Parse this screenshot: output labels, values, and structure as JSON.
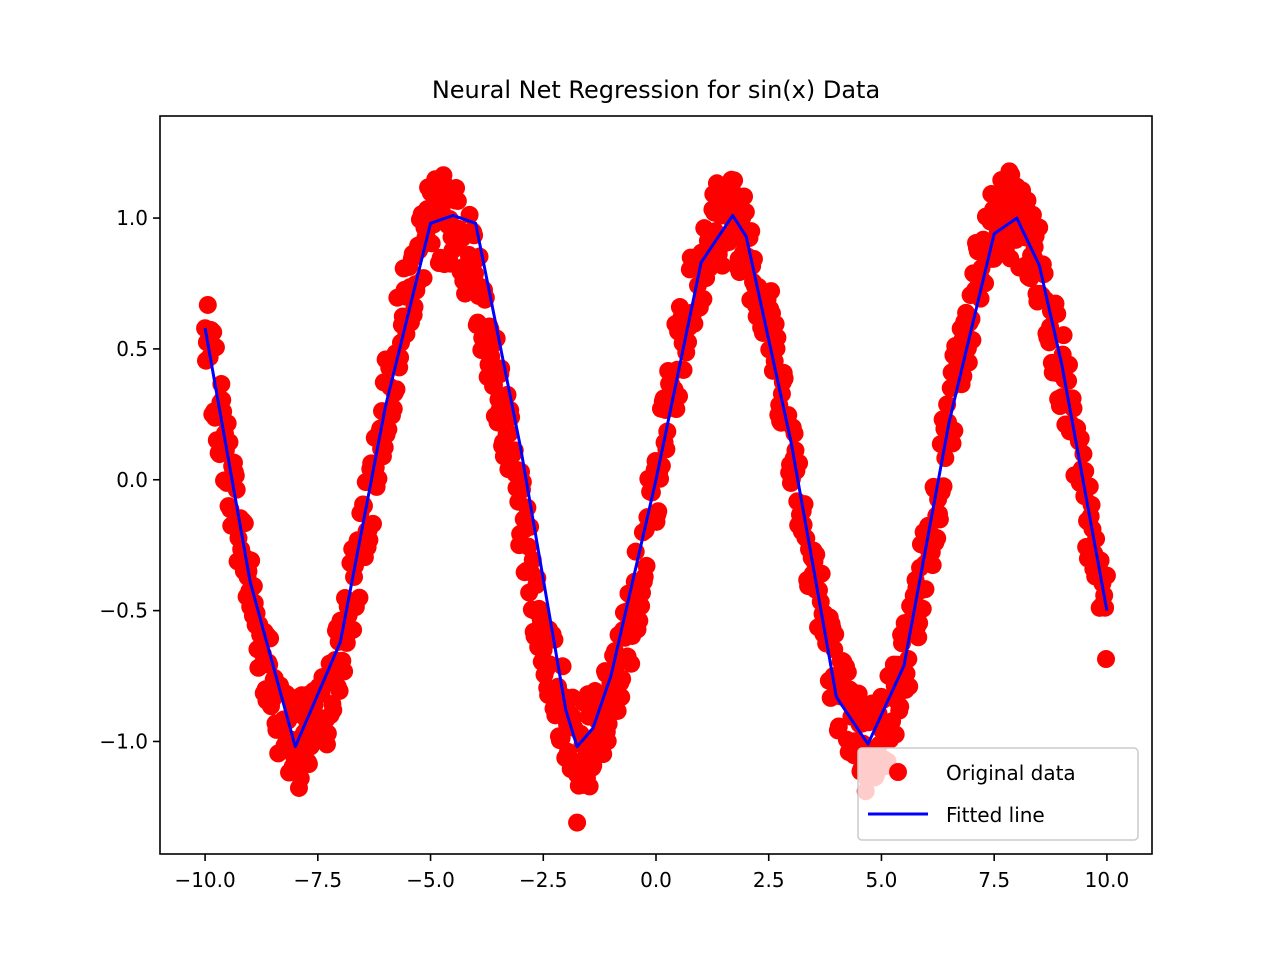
{
  "chart_data": {
    "type": "scatter",
    "title": "Neural Net Regression for sin(x) Data",
    "xlabel": "",
    "ylabel": "",
    "xlim": [
      -11.0,
      11.0
    ],
    "ylim": [
      -1.43,
      1.39
    ],
    "x_ticks": [
      -10.0,
      -7.5,
      -5.0,
      -2.5,
      0.0,
      2.5,
      5.0,
      7.5,
      10.0
    ],
    "x_tick_labels": [
      "−10.0",
      "−7.5",
      "−5.0",
      "−2.5",
      "0.0",
      "2.5",
      "5.0",
      "7.5",
      "10.0"
    ],
    "y_ticks": [
      -1.0,
      -0.5,
      0.0,
      0.5,
      1.0
    ],
    "y_tick_labels": [
      "−1.0",
      "−0.5",
      "0.0",
      "0.5",
      "1.0"
    ],
    "grid": false,
    "legend_position": "lower-right",
    "series": [
      {
        "name": "Original data",
        "kind": "scatter",
        "color": "#ff0000",
        "generator": {
          "function": "sin",
          "n_points": 1000,
          "x_range": [
            -10.0,
            10.0
          ],
          "noise_range": [
            -0.18,
            0.18
          ],
          "seed": 7
        }
      },
      {
        "name": "Fitted line",
        "kind": "line",
        "color": "#0000ff",
        "x": [
          -10.0,
          -9.0,
          -8.0,
          -7.0,
          -6.0,
          -5.0,
          -4.5,
          -4.0,
          -3.0,
          -2.0,
          -1.75,
          -1.4,
          -1.0,
          0.0,
          1.0,
          1.7,
          2.0,
          3.0,
          4.0,
          4.7,
          5.5,
          6.5,
          7.5,
          8.0,
          8.5,
          9.0,
          10.0
        ],
        "y": [
          0.58,
          -0.39,
          -1.02,
          -0.62,
          0.28,
          0.98,
          1.01,
          0.98,
          0.12,
          -0.88,
          -1.02,
          -0.95,
          -0.75,
          0.0,
          0.83,
          1.01,
          0.93,
          0.14,
          -0.83,
          -1.01,
          -0.71,
          0.22,
          0.94,
          1.0,
          0.82,
          0.44,
          -0.5
        ]
      }
    ],
    "outliers": [
      {
        "x": -1.75,
        "y": -1.31
      },
      {
        "x": 4.65,
        "y": -1.19
      }
    ]
  }
}
